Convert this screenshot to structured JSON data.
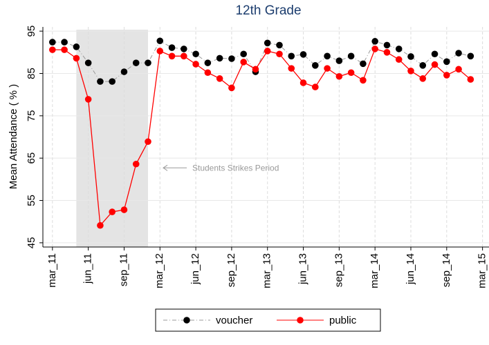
{
  "chart_data": {
    "type": "line",
    "title": "12th Grade",
    "ylabel": "Mean Attendance ( % )",
    "x": [
      0,
      1,
      2,
      3,
      4,
      5,
      6,
      7,
      8,
      9,
      10,
      11,
      12,
      13,
      14,
      15,
      16,
      17,
      18,
      19,
      20,
      21,
      22,
      23,
      24,
      25,
      26,
      27,
      28,
      29,
      30,
      31,
      32,
      33,
      34,
      35
    ],
    "series": [
      {
        "name": "voucher",
        "color": "#000000",
        "line_color": "#999999",
        "dash": true,
        "values": [
          92.4,
          92.4,
          91.3,
          87.5,
          83.1,
          83.1,
          85.4,
          87.5,
          87.5,
          92.7,
          91.1,
          90.8,
          89.6,
          87.5,
          88.6,
          88.5,
          89.6,
          85.4,
          92.2,
          91.7,
          89.1,
          89.5,
          86.9,
          89.1,
          88.0,
          89.1,
          87.3,
          92.6,
          91.7,
          90.8,
          89.0,
          86.9,
          89.6,
          87.8,
          89.8,
          89.1
        ]
      },
      {
        "name": "public",
        "color": "#ff0000",
        "line_color": "#ff0000",
        "dash": false,
        "values": [
          90.6,
          90.6,
          88.6,
          78.9,
          49.1,
          52.3,
          52.8,
          63.6,
          68.9,
          90.3,
          89.1,
          89.1,
          87.2,
          85.2,
          83.8,
          81.6,
          87.7,
          86.0,
          90.3,
          89.6,
          86.2,
          82.8,
          81.8,
          86.2,
          84.3,
          85.2,
          83.4,
          90.8,
          90.0,
          88.3,
          85.6,
          83.8,
          87.1,
          84.6,
          86.0,
          83.6
        ]
      }
    ],
    "xlim": [
      -0.8,
      36.6
    ],
    "xticks": [
      {
        "value": 0,
        "label": "mar_11"
      },
      {
        "value": 3,
        "label": "jun_11"
      },
      {
        "value": 6,
        "label": "sep_11"
      },
      {
        "value": 9,
        "label": "mar_12"
      },
      {
        "value": 12,
        "label": "jun_12"
      },
      {
        "value": 15,
        "label": "sep_12"
      },
      {
        "value": 18,
        "label": "mar_13"
      },
      {
        "value": 21,
        "label": "jun_13"
      },
      {
        "value": 24,
        "label": "sep_13"
      },
      {
        "value": 27,
        "label": "mar_14"
      },
      {
        "value": 30,
        "label": "jun_14"
      },
      {
        "value": 33,
        "label": "sep_14"
      },
      {
        "value": 36,
        "label": "mar_15"
      }
    ],
    "ylim": [
      44,
      96
    ],
    "yticks": [
      45,
      55,
      65,
      75,
      85,
      95
    ],
    "grid": true,
    "shade": [
      2,
      8
    ],
    "annotation": {
      "text": "Students Strikes Period",
      "y": 62.7
    }
  }
}
